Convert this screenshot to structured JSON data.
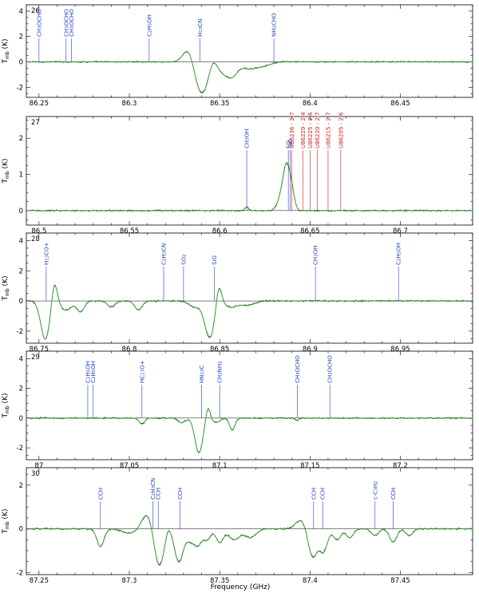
{
  "figure": {
    "xlabel": "Frequency (GHz)",
    "ylabel": "T_mb (K)",
    "colors": {
      "observed": "#1a1a1a",
      "model": "#2ab02a",
      "line_label": "#1f3fbf",
      "u_label": "#d01818"
    }
  },
  "chart_data": [
    {
      "type": "line",
      "panel": "26",
      "xlim": [
        86.243,
        86.49
      ],
      "ylim": [
        -2.8,
        4.5
      ],
      "xticks": [
        86.25,
        86.3,
        86.35,
        86.4,
        86.45
      ],
      "xtick_labels": [
        "86.25",
        "86.3",
        "86.35",
        "86.4",
        "86.45"
      ],
      "yticks": [
        -2,
        0,
        2,
        4
      ],
      "ytick_labels": [
        "-2",
        "0",
        "2",
        "4"
      ],
      "lines": [
        {
          "x": 86.25,
          "label": "CH3OCHO",
          "color": "blue"
        },
        {
          "x": 86.265,
          "label": "CH3OCHO",
          "color": "blue"
        },
        {
          "x": 86.268,
          "label": "CH3OCHO",
          "color": "blue"
        },
        {
          "x": 86.311,
          "label": "C2H5OH",
          "color": "blue"
        },
        {
          "x": 86.339,
          "label": "H13CN",
          "color": "blue"
        },
        {
          "x": 86.38,
          "label": "NH2CHO",
          "color": "blue"
        }
      ],
      "features": [
        {
          "x": 86.333,
          "amp": 1.2,
          "w": 0.003
        },
        {
          "x": 86.34,
          "amp": -2.5,
          "w": 0.004
        },
        {
          "x": 86.346,
          "amp": 0.7,
          "w": 0.002
        },
        {
          "x": 86.352,
          "amp": -0.7,
          "w": 0.003
        },
        {
          "x": 86.357,
          "amp": -1.0,
          "w": 0.003
        },
        {
          "x": 86.366,
          "amp": -0.5,
          "w": 0.004
        },
        {
          "x": 86.374,
          "amp": -0.3,
          "w": 0.004
        }
      ]
    },
    {
      "type": "line",
      "panel": "27",
      "xlim": [
        86.493,
        86.74
      ],
      "ylim": [
        -0.4,
        2.6
      ],
      "xticks": [
        86.5,
        86.55,
        86.6,
        86.65,
        86.7
      ],
      "xtick_labels": [
        "86.5",
        "86.55",
        "86.6",
        "86.65",
        "86.7"
      ],
      "yticks": [
        0,
        1,
        2
      ],
      "ytick_labels": [
        "0",
        "1",
        "2"
      ],
      "lines": [
        {
          "x": 86.615,
          "label": "CH3OH",
          "color": "blue"
        },
        {
          "x": 86.638,
          "label": "SO",
          "color": "blue"
        },
        {
          "x": 86.639,
          "label": "SiO",
          "color": "blue"
        },
        {
          "x": 86.64,
          "label": "U86236 - 2.7",
          "color": "red"
        },
        {
          "x": 86.646,
          "label": "U86229 - 2.4",
          "color": "red"
        },
        {
          "x": 86.65,
          "label": "U86225 - 2.6",
          "color": "red"
        },
        {
          "x": 86.654,
          "label": "U86220 - 2.7",
          "color": "red"
        },
        {
          "x": 86.66,
          "label": "U86215 - 2.7",
          "color": "red"
        },
        {
          "x": 86.667,
          "label": "U86205 - 2.6",
          "color": "red"
        }
      ],
      "features": [
        {
          "x": 86.615,
          "amp": 0.1,
          "w": 0.001
        },
        {
          "x": 86.637,
          "amp": 1.2,
          "w": 0.002
        },
        {
          "x": 86.64,
          "amp": 0.4,
          "w": 0.0015
        },
        {
          "x": 86.6335,
          "amp": 0.25,
          "w": 0.002
        }
      ]
    },
    {
      "type": "line",
      "panel": "28",
      "xlim": [
        86.743,
        86.99
      ],
      "ylim": [
        -2.8,
        4.5
      ],
      "xticks": [
        86.75,
        86.8,
        86.85,
        86.9,
        86.95
      ],
      "xtick_labels": [
        "86.75",
        "86.8",
        "86.85",
        "86.9",
        "86.95"
      ],
      "yticks": [
        -2,
        0,
        2,
        4
      ],
      "ytick_labels": [
        "-2",
        "0",
        "2",
        "4"
      ],
      "lines": [
        {
          "x": 86.754,
          "label": "H13CO+",
          "color": "blue"
        },
        {
          "x": 86.819,
          "label": "C2H3CN",
          "color": "blue"
        },
        {
          "x": 86.83,
          "label": "SO2",
          "color": "blue"
        },
        {
          "x": 86.847,
          "label": "SiO",
          "color": "blue"
        },
        {
          "x": 86.903,
          "label": "CH3OH",
          "color": "blue"
        },
        {
          "x": 86.949,
          "label": "C2H5OH",
          "color": "blue"
        }
      ],
      "features": [
        {
          "x": 86.7535,
          "amp": -2.5,
          "w": 0.0025
        },
        {
          "x": 86.7585,
          "amp": 1.4,
          "w": 0.0015
        },
        {
          "x": 86.765,
          "amp": -0.6,
          "w": 0.003
        },
        {
          "x": 86.773,
          "amp": -0.7,
          "w": 0.002
        },
        {
          "x": 86.79,
          "amp": -0.4,
          "w": 0.002
        },
        {
          "x": 86.805,
          "amp": -0.6,
          "w": 0.002
        },
        {
          "x": 86.836,
          "amp": -0.4,
          "w": 0.003
        },
        {
          "x": 86.8445,
          "amp": -2.4,
          "w": 0.0028
        },
        {
          "x": 86.8495,
          "amp": 1.3,
          "w": 0.0015
        },
        {
          "x": 86.856,
          "amp": -0.4,
          "w": 0.003
        },
        {
          "x": 86.865,
          "amp": -0.3,
          "w": 0.004
        }
      ]
    },
    {
      "type": "line",
      "panel": "29",
      "xlim": [
        86.993,
        87.24
      ],
      "ylim": [
        -2.8,
        4.5
      ],
      "xticks": [
        87.0,
        87.05,
        87.1,
        87.15,
        87.2
      ],
      "xtick_labels": [
        "87",
        "87.05",
        "87.1",
        "87.15",
        "87.2"
      ],
      "yticks": [
        -2,
        0,
        2,
        4
      ],
      "ytick_labels": [
        "-2",
        "0",
        "2",
        "4"
      ],
      "lines": [
        {
          "x": 87.027,
          "label": "C2H5OH",
          "color": "blue"
        },
        {
          "x": 87.03,
          "label": "C2H5OH",
          "color": "blue"
        },
        {
          "x": 87.057,
          "label": "HC17O+",
          "color": "blue"
        },
        {
          "x": 87.09,
          "label": "HN13C",
          "color": "blue"
        },
        {
          "x": 87.1,
          "label": "CH3NH2",
          "color": "blue"
        },
        {
          "x": 87.143,
          "label": "CH3OCHO",
          "color": "blue"
        },
        {
          "x": 87.161,
          "label": "CH3OCHO",
          "color": "blue"
        }
      ],
      "features": [
        {
          "x": 87.057,
          "amp": -0.4,
          "w": 0.0015
        },
        {
          "x": 87.079,
          "amp": -0.3,
          "w": 0.002
        },
        {
          "x": 87.0885,
          "amp": -2.3,
          "w": 0.0022
        },
        {
          "x": 87.0935,
          "amp": 0.8,
          "w": 0.0012
        },
        {
          "x": 87.098,
          "amp": -0.3,
          "w": 0.002
        },
        {
          "x": 87.107,
          "amp": -0.8,
          "w": 0.0015
        },
        {
          "x": 87.143,
          "amp": -0.15,
          "w": 0.001
        }
      ]
    },
    {
      "type": "line",
      "panel": "30",
      "xlim": [
        87.243,
        87.49
      ],
      "ylim": [
        -2.1,
        2.8
      ],
      "xticks": [
        87.25,
        87.3,
        87.35,
        87.4,
        87.45
      ],
      "xtick_labels": [
        "87.25",
        "87.3",
        "87.35",
        "87.4",
        "87.45"
      ],
      "yticks": [
        -2,
        0,
        2
      ],
      "ytick_labels": [
        "-2",
        "0",
        "2"
      ],
      "lines": [
        {
          "x": 87.284,
          "label": "CCH",
          "color": "blue"
        },
        {
          "x": 87.313,
          "label": "C2H3CN",
          "color": "blue"
        },
        {
          "x": 87.316,
          "label": "CCH",
          "color": "blue"
        },
        {
          "x": 87.328,
          "label": "CCH",
          "color": "blue"
        },
        {
          "x": 87.402,
          "label": "CCH",
          "color": "blue"
        },
        {
          "x": 87.407,
          "label": "CCH",
          "color": "blue"
        },
        {
          "x": 87.436,
          "label": "c-C3H2",
          "color": "blue"
        },
        {
          "x": 87.446,
          "label": "CCH",
          "color": "blue"
        }
      ],
      "features": [
        {
          "x": 87.284,
          "amp": -0.8,
          "w": 0.002
        },
        {
          "x": 87.3,
          "amp": -0.2,
          "w": 0.004
        },
        {
          "x": 87.31,
          "amp": 0.7,
          "w": 0.003
        },
        {
          "x": 87.3165,
          "amp": -1.7,
          "w": 0.0028
        },
        {
          "x": 87.3215,
          "amp": 0.3,
          "w": 0.0015
        },
        {
          "x": 87.3275,
          "amp": -1.5,
          "w": 0.0025
        },
        {
          "x": 87.334,
          "amp": -0.5,
          "w": 0.002
        },
        {
          "x": 87.338,
          "amp": -0.7,
          "w": 0.002
        },
        {
          "x": 87.343,
          "amp": -0.5,
          "w": 0.002
        },
        {
          "x": 87.35,
          "amp": -0.6,
          "w": 0.002
        },
        {
          "x": 87.358,
          "amp": -0.5,
          "w": 0.003
        },
        {
          "x": 87.367,
          "amp": -0.4,
          "w": 0.003
        },
        {
          "x": 87.395,
          "amp": 0.4,
          "w": 0.003
        },
        {
          "x": 87.4015,
          "amp": -1.3,
          "w": 0.0025
        },
        {
          "x": 87.4075,
          "amp": -1.0,
          "w": 0.0022
        },
        {
          "x": 87.415,
          "amp": -0.5,
          "w": 0.002
        },
        {
          "x": 87.422,
          "amp": -0.4,
          "w": 0.002
        },
        {
          "x": 87.436,
          "amp": -0.3,
          "w": 0.002
        },
        {
          "x": 87.446,
          "amp": -0.6,
          "w": 0.002
        },
        {
          "x": 87.455,
          "amp": -0.3,
          "w": 0.002
        }
      ]
    }
  ]
}
